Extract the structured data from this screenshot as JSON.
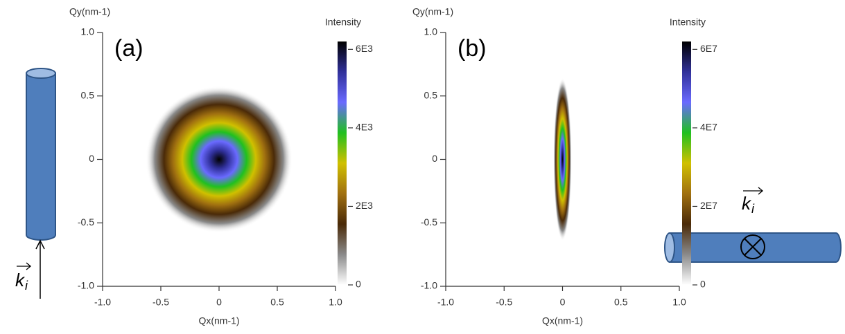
{
  "chart_data": [
    {
      "type": "heatmap",
      "panel_label": "(a)",
      "x_label": "Qx(nm-1)",
      "y_label": "Qy(nm-1)",
      "colorbar_label": "Intensity",
      "xlim": [
        -1,
        1
      ],
      "ylim": [
        -1,
        1
      ],
      "xticks": [
        {
          "value": -1,
          "label": "-1.0"
        },
        -0.5,
        0,
        0.5,
        {
          "value": 1,
          "label": "1.0"
        }
      ],
      "yticks": [
        {
          "value": -1,
          "label": "-1.0"
        },
        -0.5,
        0,
        0.5,
        {
          "value": 1,
          "label": "1.0"
        }
      ],
      "clim": [
        0,
        6200
      ],
      "cticks": [
        0,
        {
          "value": 2000,
          "label": "2E3"
        },
        {
          "value": 4000,
          "label": "4E3"
        },
        {
          "value": 6000,
          "label": "6E3"
        }
      ],
      "colormap": [
        "#ffffff",
        "#8a8a8a",
        "#4a2a08",
        "#a07010",
        "#d0c000",
        "#20c020",
        "#6a6aff",
        "#30309a",
        "#000000"
      ],
      "beam_symbol": "k",
      "beam_subscript": "i"
    },
    {
      "type": "heatmap",
      "panel_label": "(b)",
      "x_label": "Qx(nm-1)",
      "y_label": "Qy(nm-1)",
      "colorbar_label": "Intensity",
      "xlim": [
        -1,
        1
      ],
      "ylim": [
        -1,
        1
      ],
      "xticks": [
        {
          "value": -1,
          "label": "-1.0"
        },
        -0.5,
        0,
        0.5,
        {
          "value": 1,
          "label": "1.0"
        }
      ],
      "yticks": [
        {
          "value": -1,
          "label": "-1.0"
        },
        -0.5,
        0,
        0.5,
        {
          "value": 1,
          "label": "1.0"
        }
      ],
      "clim": [
        0,
        62000000
      ],
      "cticks": [
        0,
        {
          "value": 20000000,
          "label": "2E7"
        },
        {
          "value": 40000000,
          "label": "4E7"
        },
        {
          "value": 60000000,
          "label": "6E7"
        }
      ],
      "colormap": [
        "#ffffff",
        "#8a8a8a",
        "#4a2a08",
        "#a07010",
        "#d0c000",
        "#20c020",
        "#6a6aff",
        "#30309a",
        "#000000"
      ],
      "beam_symbol": "k",
      "beam_subscript": "i"
    }
  ]
}
